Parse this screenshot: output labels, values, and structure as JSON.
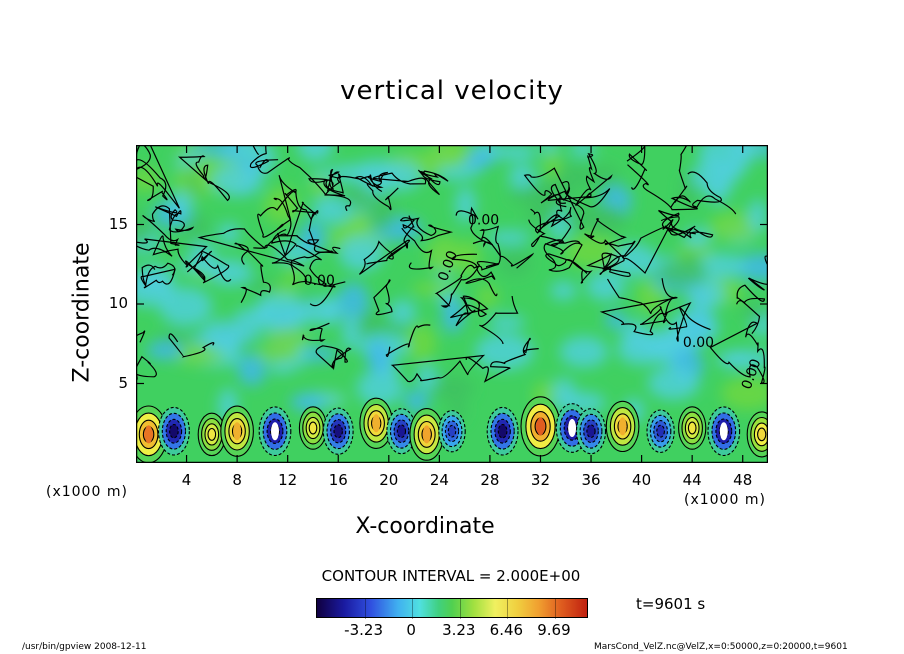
{
  "chart_data": {
    "type": "heatmap",
    "title": "vertical velocity",
    "xlabel": "X-coordinate",
    "ylabel": "Z-coordinate",
    "x_unit_label": "(x1000 m)",
    "xlim": [
      0,
      50
    ],
    "ylim": [
      0,
      20
    ],
    "x_ticks": [
      "4",
      "8",
      "12",
      "16",
      "20",
      "24",
      "28",
      "32",
      "36",
      "40",
      "44",
      "48"
    ],
    "x_tick_values": [
      4,
      8,
      12,
      16,
      20,
      24,
      28,
      32,
      36,
      40,
      44,
      48
    ],
    "y_ticks": [
      "5",
      "10",
      "15"
    ],
    "y_tick_values": [
      5,
      10,
      15
    ],
    "contour_interval": "CONTOUR INTERVAL = 2.000E+00",
    "contour_labels": [
      "0.00",
      "0.00",
      "0.00",
      "0.00",
      "0.00"
    ],
    "contour_label_positions": [
      [
        27.5,
        15
      ],
      [
        25,
        12.3
      ],
      [
        14.5,
        11.2
      ],
      [
        44.5,
        7.3
      ],
      [
        49,
        5.5
      ]
    ],
    "colorbar_ticks": [
      "-3.23",
      "0",
      "3.23",
      "6.46",
      "9.69"
    ],
    "colorbar_values": [
      -3.23,
      0,
      3.23,
      6.46,
      9.69
    ],
    "colorbar_range": [
      -6.46,
      12.0
    ],
    "time_label": "t=9601 s",
    "cells": [
      {
        "x": 1,
        "z": 1.8,
        "v": 9.5
      },
      {
        "x": 3,
        "z": 2.0,
        "v": -6.0
      },
      {
        "x": 6,
        "z": 1.8,
        "v": 4.0
      },
      {
        "x": 8,
        "z": 2.0,
        "v": 7.0
      },
      {
        "x": 11,
        "z": 2.0,
        "v": -6.4
      },
      {
        "x": 14,
        "z": 2.2,
        "v": 4.0
      },
      {
        "x": 16,
        "z": 2.0,
        "v": -5.5
      },
      {
        "x": 19,
        "z": 2.5,
        "v": 7.0
      },
      {
        "x": 21,
        "z": 2.0,
        "v": -5.0
      },
      {
        "x": 23,
        "z": 1.8,
        "v": 7.5
      },
      {
        "x": 25,
        "z": 2.0,
        "v": -3.5
      },
      {
        "x": 29,
        "z": 2.0,
        "v": -6.0
      },
      {
        "x": 32,
        "z": 2.3,
        "v": 10.5
      },
      {
        "x": 34.5,
        "z": 2.2,
        "v": -6.4
      },
      {
        "x": 36,
        "z": 2.0,
        "v": -5.0
      },
      {
        "x": 38.5,
        "z": 2.3,
        "v": 7.0
      },
      {
        "x": 41.5,
        "z": 2.0,
        "v": -4.0
      },
      {
        "x": 44,
        "z": 2.2,
        "v": 4.0
      },
      {
        "x": 46.5,
        "z": 2.0,
        "v": -6.4
      },
      {
        "x": 49.5,
        "z": 1.8,
        "v": 5.0
      }
    ]
  },
  "footer": {
    "left": "/usr/bin/gpview   2008-12-11",
    "right": "MarsCond_VelZ.nc@VelZ,x=0:50000,z=0:20000,t=9601"
  },
  "colors": {
    "background_field": "#40d060",
    "neg_strong": "#100050",
    "neg": "#3050e0",
    "pos": "#f0f040",
    "pos_strong": "#e05020"
  }
}
